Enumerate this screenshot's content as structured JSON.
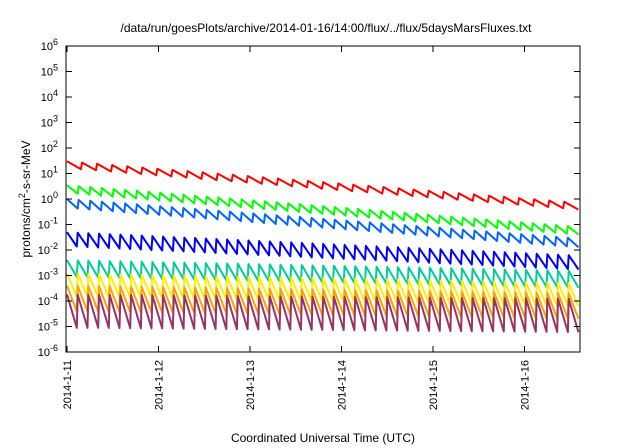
{
  "chart_data": {
    "type": "line",
    "title": "/data/run/goesPlots/archive/2014-01-16/14:00/flux/../flux/5daysMarsFluxes.txt",
    "xlabel": "Coordinated Universal Time (UTC)",
    "ylabel": {
      "base": "protons/cm",
      "sup": "2",
      "rest": "-s-sr-MeV"
    },
    "x_ticks": [
      "2014-1-11",
      "2014-1-12",
      "2014-1-13",
      "2014-1-14",
      "2014-1-15",
      "2014-1-16"
    ],
    "x_range_days": [
      0,
      5.6
    ],
    "y_scale": "log",
    "y_ticks": [
      {
        "base": "10",
        "exp": "-6"
      },
      {
        "base": "10",
        "exp": "-5"
      },
      {
        "base": "10",
        "exp": "-4"
      },
      {
        "base": "10",
        "exp": "-3"
      },
      {
        "base": "10",
        "exp": "-2"
      },
      {
        "base": "10",
        "exp": "-1"
      },
      {
        "base": "10",
        "exp": "0"
      },
      {
        "base": "10",
        "exp": "1"
      },
      {
        "base": "10",
        "exp": "2"
      },
      {
        "base": "10",
        "exp": "3"
      },
      {
        "base": "10",
        "exp": "4"
      },
      {
        "base": "10",
        "exp": "5"
      },
      {
        "base": "10",
        "exp": "6"
      }
    ],
    "ylim": [
      1e-06,
      1000000.0
    ],
    "grid": false,
    "legend": "none",
    "series": [
      {
        "color": "#ff0000",
        "sawtooth": {
          "start_high": 30,
          "end_high": 0.7,
          "amplitude_ratio": 1.8,
          "teeth": 34
        }
      },
      {
        "color": "#00ff00",
        "sawtooth": {
          "start_high": 3.5,
          "end_high": 0.08,
          "amplitude_ratio": 2.0,
          "teeth": 44
        }
      },
      {
        "color": "#0066ff",
        "sawtooth": {
          "start_high": 1.0,
          "end_high": 0.028,
          "amplitude_ratio": 2.2,
          "teeth": 44
        }
      },
      {
        "color": "#0000ff",
        "sawtooth": {
          "start_high": 0.05,
          "end_high": 0.006,
          "amplitude_ratio": 3.5,
          "teeth": 48
        }
      },
      {
        "color": "#00cc99",
        "sawtooth": {
          "start_high": 0.004,
          "end_high": 0.0015,
          "amplitude_ratio": 4.5,
          "teeth": 48
        }
      },
      {
        "color": "#ffee00",
        "sawtooth": {
          "start_high": 0.0012,
          "end_high": 0.0005,
          "amplitude_ratio": 8,
          "teeth": 48
        }
      },
      {
        "color": "#ffa000",
        "sawtooth": {
          "start_high": 0.0004,
          "end_high": 0.0002,
          "amplitude_ratio": 10,
          "teeth": 48
        }
      },
      {
        "color": "#993366",
        "sawtooth": {
          "start_high": 0.00018,
          "end_high": 0.00012,
          "amplitude_ratio": 20,
          "teeth": 48
        }
      }
    ]
  }
}
